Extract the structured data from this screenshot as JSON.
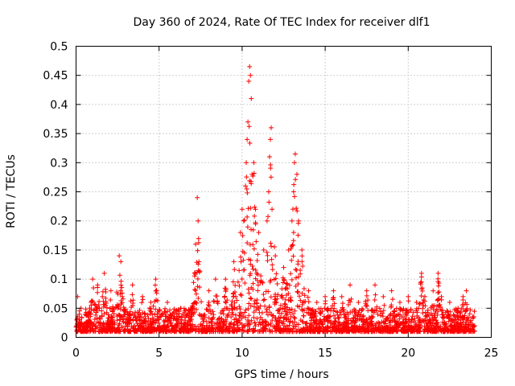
{
  "chart_data": {
    "type": "scatter",
    "title": "Day 360 of 2024, Rate Of TEC Index for receiver dlf1",
    "xlabel": "GPS time / hours",
    "ylabel": "ROTI / TECUs",
    "xlim": [
      0,
      25
    ],
    "ylim": [
      0,
      0.5
    ],
    "xticks": [
      0,
      5,
      10,
      15,
      20,
      25
    ],
    "yticks": [
      0,
      0.05,
      0.1,
      0.15,
      0.2,
      0.25,
      0.3,
      0.35,
      0.4,
      0.45,
      0.5
    ],
    "xtick_labels": [
      "0",
      "5",
      "10",
      "15",
      "20",
      "25"
    ],
    "ytick_labels": [
      "0",
      "0.05",
      "0.1",
      "0.15",
      "0.2",
      "0.25",
      "0.3",
      "0.35",
      "0.4",
      "0.45",
      "0.5"
    ],
    "grid": true,
    "marker": "+",
    "color": "#ff0000",
    "x_data_range": [
      0,
      24
    ],
    "baseline_band": [
      0.01,
      0.05
    ],
    "series": [
      {
        "name": "",
        "points": [
          [
            0.1,
            0.07
          ],
          [
            0.3,
            0.05
          ],
          [
            1.0,
            0.1
          ],
          [
            1.3,
            0.09
          ],
          [
            1.7,
            0.11
          ],
          [
            2.1,
            0.08
          ],
          [
            2.6,
            0.14
          ],
          [
            2.7,
            0.13
          ],
          [
            3.4,
            0.09
          ],
          [
            4.0,
            0.07
          ],
          [
            4.5,
            0.06
          ],
          [
            4.8,
            0.1
          ],
          [
            5.5,
            0.06
          ],
          [
            6.3,
            0.05
          ],
          [
            7.0,
            0.05
          ],
          [
            7.2,
            0.16
          ],
          [
            7.3,
            0.24
          ],
          [
            7.35,
            0.2
          ],
          [
            7.4,
            0.13
          ],
          [
            8.0,
            0.08
          ],
          [
            8.4,
            0.1
          ],
          [
            9.0,
            0.1
          ],
          [
            9.5,
            0.13
          ],
          [
            9.9,
            0.18
          ],
          [
            10.0,
            0.22
          ],
          [
            10.1,
            0.2
          ],
          [
            10.2,
            0.26
          ],
          [
            10.25,
            0.3
          ],
          [
            10.3,
            0.34
          ],
          [
            10.35,
            0.37
          ],
          [
            10.4,
            0.44
          ],
          [
            10.45,
            0.465
          ],
          [
            10.5,
            0.45
          ],
          [
            10.55,
            0.41
          ],
          [
            10.6,
            0.28
          ],
          [
            10.7,
            0.3
          ],
          [
            10.8,
            0.22
          ],
          [
            11.0,
            0.18
          ],
          [
            11.3,
            0.15
          ],
          [
            11.5,
            0.2
          ],
          [
            11.6,
            0.25
          ],
          [
            11.65,
            0.31
          ],
          [
            11.7,
            0.34
          ],
          [
            11.75,
            0.36
          ],
          [
            11.8,
            0.22
          ],
          [
            12.0,
            0.14
          ],
          [
            12.5,
            0.12
          ],
          [
            12.8,
            0.15
          ],
          [
            13.0,
            0.2
          ],
          [
            13.1,
            0.25
          ],
          [
            13.15,
            0.3
          ],
          [
            13.2,
            0.315
          ],
          [
            13.3,
            0.28
          ],
          [
            13.4,
            0.2
          ],
          [
            13.6,
            0.15
          ],
          [
            14.0,
            0.08
          ],
          [
            14.5,
            0.06
          ],
          [
            15.0,
            0.07
          ],
          [
            15.5,
            0.08
          ],
          [
            16.0,
            0.07
          ],
          [
            16.5,
            0.09
          ],
          [
            17.0,
            0.06
          ],
          [
            17.5,
            0.08
          ],
          [
            18.0,
            0.09
          ],
          [
            18.5,
            0.07
          ],
          [
            19.0,
            0.08
          ],
          [
            19.5,
            0.06
          ],
          [
            20.0,
            0.07
          ],
          [
            20.5,
            0.06
          ],
          [
            20.8,
            0.11
          ],
          [
            21.0,
            0.07
          ],
          [
            21.5,
            0.08
          ],
          [
            21.8,
            0.11
          ],
          [
            22.0,
            0.07
          ],
          [
            22.5,
            0.06
          ],
          [
            23.0,
            0.05
          ],
          [
            23.3,
            0.07
          ],
          [
            23.5,
            0.08
          ],
          [
            24.0,
            0.02
          ]
        ]
      }
    ]
  }
}
